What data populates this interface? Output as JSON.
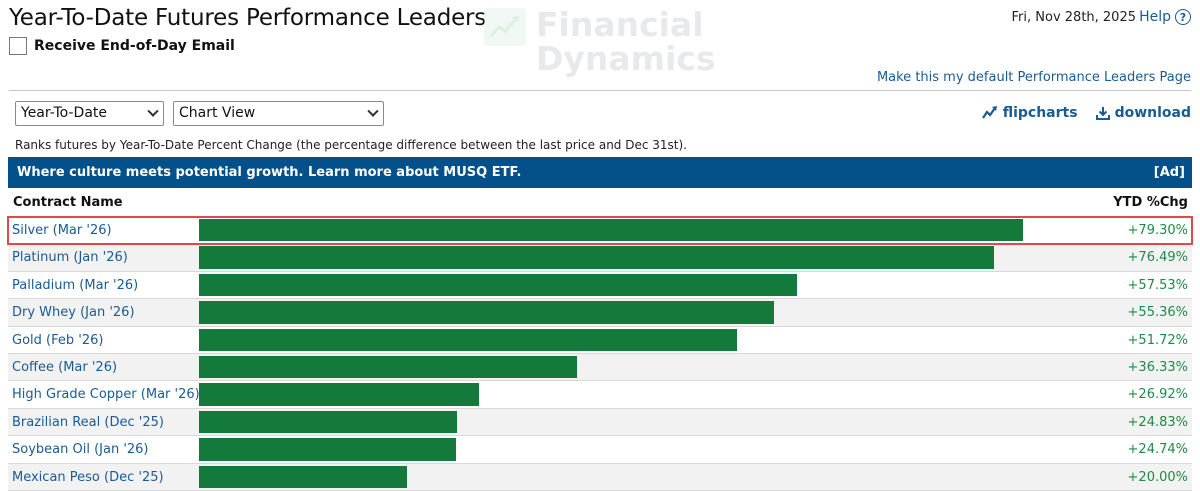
{
  "header": {
    "title": "Year-To-Date Futures Performance Leaders",
    "email_label": "Receive End-of-Day Email",
    "date": "Fri, Nov 28th, 2025",
    "help_label": "Help",
    "default_link": "Make this my default Performance Leaders Page"
  },
  "watermark": {
    "line1": "Financial",
    "line2": "Dynamics"
  },
  "controls": {
    "period_select": "Year-To-Date",
    "view_select": "Chart View",
    "flipcharts_label": "flipcharts",
    "download_label": "download"
  },
  "description": "Ranks futures by Year-To-Date Percent Change (the percentage difference between the last price and Dec 31st).",
  "banner": {
    "text": "Where culture meets potential growth. Learn more about MUSQ ETF.",
    "ad_label": "[Ad]"
  },
  "table": {
    "col_name": "Contract Name",
    "col_chg": "YTD %Chg",
    "rows": [
      {
        "name": "Silver (Mar '26)",
        "pct": "+79.30%",
        "value": 79.3
      },
      {
        "name": "Platinum (Jan '26)",
        "pct": "+76.49%",
        "value": 76.49
      },
      {
        "name": "Palladium (Mar '26)",
        "pct": "+57.53%",
        "value": 57.53
      },
      {
        "name": "Dry Whey (Jan '26)",
        "pct": "+55.36%",
        "value": 55.36
      },
      {
        "name": "Gold (Feb '26)",
        "pct": "+51.72%",
        "value": 51.72
      },
      {
        "name": "Coffee (Mar '26)",
        "pct": "+36.33%",
        "value": 36.33
      },
      {
        "name": "High Grade Copper (Mar '26)",
        "pct": "+26.92%",
        "value": 26.92
      },
      {
        "name": "Brazilian Real (Dec '25)",
        "pct": "+24.83%",
        "value": 24.83
      },
      {
        "name": "Soybean Oil (Jan '26)",
        "pct": "+24.74%",
        "value": 24.74
      },
      {
        "name": "Mexican Peso (Dec '25)",
        "pct": "+20.00%",
        "value": 20.0
      }
    ]
  },
  "colors": {
    "bar": "#137a3c",
    "link": "#1a5b93",
    "banner": "#03508a",
    "positive": "#1f8a47",
    "highlight": "#e0484b"
  },
  "icons": [
    "help-icon",
    "flipcharts-icon",
    "download-icon",
    "chevron-down-icon",
    "logo-icon"
  ]
}
